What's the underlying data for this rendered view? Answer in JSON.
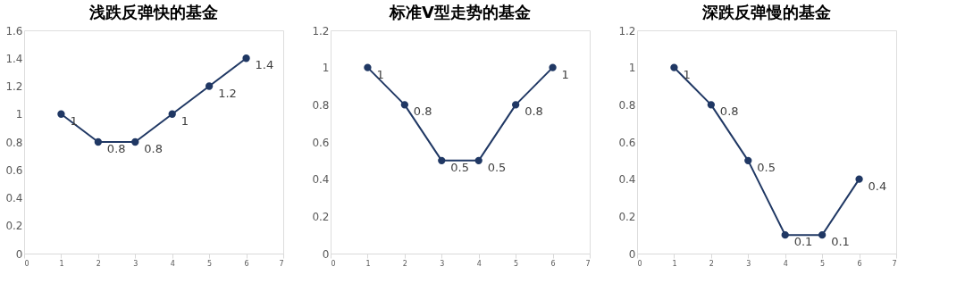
{
  "chart_data": [
    {
      "type": "line",
      "title": "浅跌反弹快的基金",
      "x": [
        1,
        2,
        3,
        4,
        5,
        6
      ],
      "series": [
        {
          "color": "#203864",
          "values": [
            1,
            0.8,
            0.8,
            1,
            1.2,
            1.4
          ]
        }
      ],
      "xlim": [
        0,
        7
      ],
      "xticks": [
        0,
        1,
        2,
        3,
        4,
        5,
        6,
        7
      ],
      "ylim": [
        0,
        1.6
      ],
      "yticks": [
        0,
        0.2,
        0.4,
        0.6,
        0.8,
        1,
        1.2,
        1.4,
        1.6
      ],
      "grid": false,
      "marker": "circle",
      "line_style": "solid",
      "data_labels": true
    },
    {
      "type": "line",
      "title": "标准V型走势的基金",
      "x": [
        1,
        2,
        3,
        4,
        5,
        6
      ],
      "series": [
        {
          "color": "#203864",
          "values": [
            1,
            0.8,
            0.5,
            0.5,
            0.8,
            1
          ]
        }
      ],
      "xlim": [
        0,
        7
      ],
      "xticks": [
        0,
        1,
        2,
        3,
        4,
        5,
        6,
        7
      ],
      "ylim": [
        0,
        1.2
      ],
      "yticks": [
        0,
        0.2,
        0.4,
        0.6,
        0.8,
        1,
        1.2
      ],
      "grid": false,
      "marker": "circle",
      "line_style": "solid",
      "data_labels": true
    },
    {
      "type": "line",
      "title": "深跌反弹慢的基金",
      "x": [
        1,
        2,
        3,
        4,
        5,
        6
      ],
      "series": [
        {
          "color": "#203864",
          "values": [
            1,
            0.8,
            0.5,
            0.1,
            0.1,
            0.4
          ]
        }
      ],
      "xlim": [
        0,
        7
      ],
      "xticks": [
        0,
        1,
        2,
        3,
        4,
        5,
        6,
        7
      ],
      "ylim": [
        0,
        1.2
      ],
      "yticks": [
        0,
        0.2,
        0.4,
        0.6,
        0.8,
        1,
        1.2
      ],
      "grid": false,
      "marker": "circle",
      "line_style": "solid",
      "data_labels": true
    }
  ]
}
